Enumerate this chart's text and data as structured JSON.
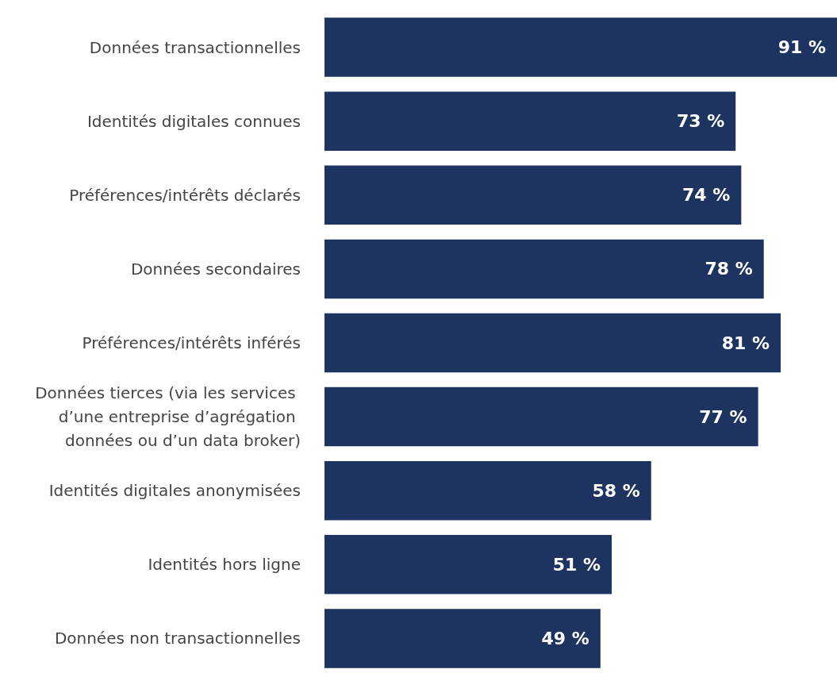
{
  "chart_data": {
    "type": "bar",
    "orientation": "horizontal",
    "categories": [
      "Données transactionnelles",
      "Identités digitales connues",
      "Préférences/intérêts déclarés",
      "Données secondaires",
      "Préférences/intérêts inférés",
      "Données tierces (via les services d’une entreprise d’agrégation données ou d’un data broker)",
      "Identités digitales anonymisées",
      "Identités hors ligne",
      "Données non transactionnelles"
    ],
    "values": [
      91,
      73,
      74,
      78,
      81,
      77,
      58,
      51,
      49
    ],
    "value_labels": [
      "91 %",
      "73 %",
      "74 %",
      "78 %",
      "81 %",
      "77 %",
      "58 %",
      "51 %",
      "49 %"
    ],
    "color": "#1d3461",
    "xlim": [
      0,
      91
    ]
  }
}
